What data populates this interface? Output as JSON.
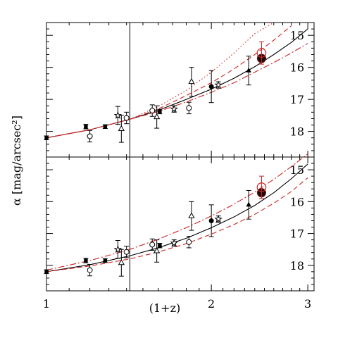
{
  "chart_data": {
    "type": "scatter",
    "xlabel": "(1+z)",
    "ylabel": "α [mag/arcsec²]",
    "x_scale": "log",
    "xlim": [
      1.0,
      3.08
    ],
    "ylim": [
      18.8,
      14.6
    ],
    "x_ticks": [
      1,
      2,
      3
    ],
    "y_ticks": [
      15,
      16,
      17,
      18
    ],
    "vertical_line_x": 1.42,
    "panels": [
      {
        "id": "top",
        "points": [
          {
            "marker": "filled-square",
            "x": 1.0,
            "y": 18.2,
            "err": 0.06
          },
          {
            "marker": "filled-square",
            "x": 1.18,
            "y": 17.85,
            "err": 0.07
          },
          {
            "marker": "open-circle",
            "x": 1.2,
            "y": 18.15,
            "err": 0.18
          },
          {
            "marker": "filled-square",
            "x": 1.28,
            "y": 17.85,
            "err": 0.06
          },
          {
            "marker": "open-star",
            "x": 1.35,
            "y": 17.5,
            "err": 0.28
          },
          {
            "marker": "open-triangle",
            "x": 1.37,
            "y": 17.92,
            "err": 0.42
          },
          {
            "marker": "open-circle",
            "x": 1.4,
            "y": 17.58,
            "err": 0.18
          },
          {
            "marker": "open-circle",
            "x": 1.56,
            "y": 17.35,
            "err": 0.18
          },
          {
            "marker": "open-triangle",
            "x": 1.59,
            "y": 17.55,
            "err": 0.35
          },
          {
            "marker": "filled-square",
            "x": 1.61,
            "y": 17.38,
            "err": 0.07
          },
          {
            "marker": "open-star",
            "x": 1.71,
            "y": 17.3,
            "err": 0.1
          },
          {
            "marker": "open-circle",
            "x": 1.82,
            "y": 17.27,
            "err": 0.18
          },
          {
            "marker": "open-triangle",
            "x": 1.84,
            "y": 16.45,
            "err": 0.45
          },
          {
            "marker": "filled-circle",
            "x": 2.0,
            "y": 16.6,
            "err": 0.5
          },
          {
            "marker": "open-star",
            "x": 2.06,
            "y": 16.55,
            "err": 0.1
          },
          {
            "marker": "filled-triangle",
            "x": 2.34,
            "y": 16.1,
            "err": 0.45
          },
          {
            "marker": "big-filled-circle",
            "x": 2.47,
            "y": 15.72,
            "err": 0.0
          },
          {
            "marker": "open-circle-red",
            "x": 2.47,
            "y": 15.55,
            "err": 0.35
          }
        ],
        "curves": [
          {
            "style": "solid-black",
            "points": [
              [
                1.0,
                18.2
              ],
              [
                1.2,
                17.95
              ],
              [
                1.42,
                17.62
              ],
              [
                1.6,
                17.34
              ],
              [
                1.8,
                17.0
              ],
              [
                2.0,
                16.68
              ],
              [
                2.2,
                16.34
              ],
              [
                2.4,
                15.98
              ],
              [
                2.6,
                15.6
              ],
              [
                2.8,
                15.22
              ],
              [
                3.0,
                14.8
              ]
            ]
          },
          {
            "style": "solid-red",
            "points": [
              [
                1.0,
                18.2
              ],
              [
                1.2,
                17.95
              ],
              [
                1.42,
                17.62
              ]
            ]
          },
          {
            "style": "dotted-red",
            "points": [
              [
                1.42,
                17.62
              ],
              [
                1.6,
                17.22
              ],
              [
                1.8,
                16.72
              ],
              [
                2.0,
                16.15
              ],
              [
                2.2,
                15.55
              ],
              [
                2.4,
                14.95
              ],
              [
                2.6,
                14.6
              ]
            ]
          },
          {
            "style": "dashed-red",
            "points": [
              [
                1.42,
                17.62
              ],
              [
                1.6,
                17.3
              ],
              [
                1.8,
                16.88
              ],
              [
                2.0,
                16.48
              ],
              [
                2.2,
                16.05
              ],
              [
                2.4,
                15.6
              ],
              [
                2.6,
                15.15
              ],
              [
                2.8,
                14.7
              ]
            ]
          },
          {
            "style": "dashdot-red",
            "points": [
              [
                1.42,
                17.62
              ],
              [
                1.6,
                17.38
              ],
              [
                1.8,
                17.08
              ],
              [
                2.0,
                16.78
              ],
              [
                2.2,
                16.48
              ],
              [
                2.4,
                16.15
              ],
              [
                2.6,
                15.85
              ],
              [
                2.8,
                15.55
              ],
              [
                3.0,
                15.25
              ]
            ]
          }
        ]
      },
      {
        "id": "bottom",
        "points": [
          {
            "marker": "filled-square",
            "x": 1.0,
            "y": 18.2,
            "err": 0.06
          },
          {
            "marker": "filled-square",
            "x": 1.18,
            "y": 17.85,
            "err": 0.07
          },
          {
            "marker": "open-circle",
            "x": 1.2,
            "y": 18.15,
            "err": 0.18
          },
          {
            "marker": "filled-square",
            "x": 1.28,
            "y": 17.85,
            "err": 0.06
          },
          {
            "marker": "open-star",
            "x": 1.35,
            "y": 17.5,
            "err": 0.28
          },
          {
            "marker": "open-triangle",
            "x": 1.37,
            "y": 17.92,
            "err": 0.42
          },
          {
            "marker": "open-circle",
            "x": 1.4,
            "y": 17.58,
            "err": 0.18
          },
          {
            "marker": "open-circle",
            "x": 1.56,
            "y": 17.35,
            "err": 0.18
          },
          {
            "marker": "open-triangle",
            "x": 1.59,
            "y": 17.55,
            "err": 0.35
          },
          {
            "marker": "filled-square",
            "x": 1.61,
            "y": 17.38,
            "err": 0.07
          },
          {
            "marker": "open-star",
            "x": 1.71,
            "y": 17.3,
            "err": 0.1
          },
          {
            "marker": "open-circle",
            "x": 1.82,
            "y": 17.27,
            "err": 0.18
          },
          {
            "marker": "open-triangle",
            "x": 1.84,
            "y": 16.45,
            "err": 0.45
          },
          {
            "marker": "filled-circle",
            "x": 2.0,
            "y": 16.6,
            "err": 0.5
          },
          {
            "marker": "open-star",
            "x": 2.06,
            "y": 16.55,
            "err": 0.1
          },
          {
            "marker": "filled-triangle",
            "x": 2.34,
            "y": 16.1,
            "err": 0.45
          },
          {
            "marker": "big-filled-circle",
            "x": 2.47,
            "y": 15.72,
            "err": 0.0
          },
          {
            "marker": "open-circle-red",
            "x": 2.47,
            "y": 15.55,
            "err": 0.35
          }
        ],
        "curves": [
          {
            "style": "solid-black",
            "points": [
              [
                1.0,
                18.2
              ],
              [
                1.2,
                17.98
              ],
              [
                1.42,
                17.7
              ],
              [
                1.6,
                17.45
              ],
              [
                1.8,
                17.15
              ],
              [
                2.0,
                16.82
              ],
              [
                2.2,
                16.48
              ],
              [
                2.4,
                16.12
              ],
              [
                2.6,
                15.72
              ],
              [
                2.8,
                15.28
              ],
              [
                3.0,
                14.82
              ]
            ]
          },
          {
            "style": "dashed-red",
            "points": [
              [
                1.0,
                18.2
              ],
              [
                1.2,
                18.02
              ],
              [
                1.42,
                17.8
              ],
              [
                1.6,
                17.58
              ],
              [
                1.8,
                17.32
              ],
              [
                2.0,
                17.02
              ],
              [
                2.2,
                16.72
              ],
              [
                2.4,
                16.4
              ],
              [
                2.6,
                16.05
              ],
              [
                2.8,
                15.68
              ],
              [
                3.0,
                15.25
              ]
            ]
          },
          {
            "style": "dashdot-red",
            "points": [
              [
                1.0,
                18.15
              ],
              [
                1.2,
                17.85
              ],
              [
                1.42,
                17.5
              ],
              [
                1.6,
                17.18
              ],
              [
                1.8,
                16.82
              ],
              [
                2.0,
                16.45
              ],
              [
                2.2,
                16.08
              ],
              [
                2.4,
                15.7
              ],
              [
                2.6,
                15.3
              ],
              [
                2.8,
                14.9
              ],
              [
                3.0,
                14.5
              ]
            ]
          }
        ]
      }
    ]
  }
}
